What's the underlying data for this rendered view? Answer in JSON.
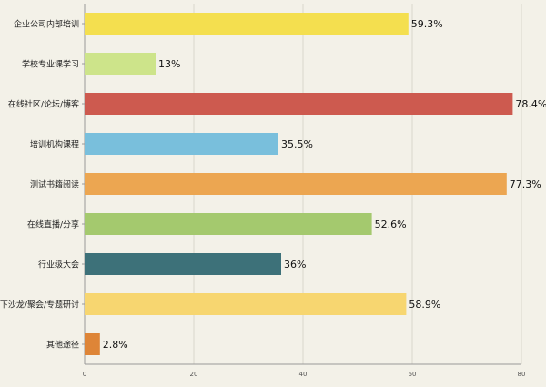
{
  "chart_data": {
    "type": "bar",
    "orientation": "horizontal",
    "categories": [
      "企业公司内部培训",
      "学校专业课学习",
      "在线社区/论坛/博客",
      "培训机构课程",
      "测试书籍阅读",
      "在线直播/分享",
      "行业级大会",
      "线下沙龙/聚会/专题研讨",
      "其他途径"
    ],
    "values": [
      59.3,
      13,
      78.4,
      35.5,
      77.3,
      52.6,
      36,
      58.9,
      2.8
    ],
    "value_labels": [
      "59.3%",
      "13%",
      "78.4%",
      "35.5%",
      "77.3%",
      "52.6%",
      "36%",
      "58.9%",
      "2.8%"
    ],
    "colors": [
      "#f4df4f",
      "#cde48a",
      "#cd5a4f",
      "#79bfdc",
      "#eca651",
      "#a4c96e",
      "#3d7179",
      "#f7d670",
      "#de8537"
    ],
    "xlim": [
      0,
      80
    ],
    "xticks": [
      0,
      20,
      40,
      60,
      80
    ],
    "grid": true,
    "title": "",
    "xlabel": "",
    "ylabel": ""
  }
}
